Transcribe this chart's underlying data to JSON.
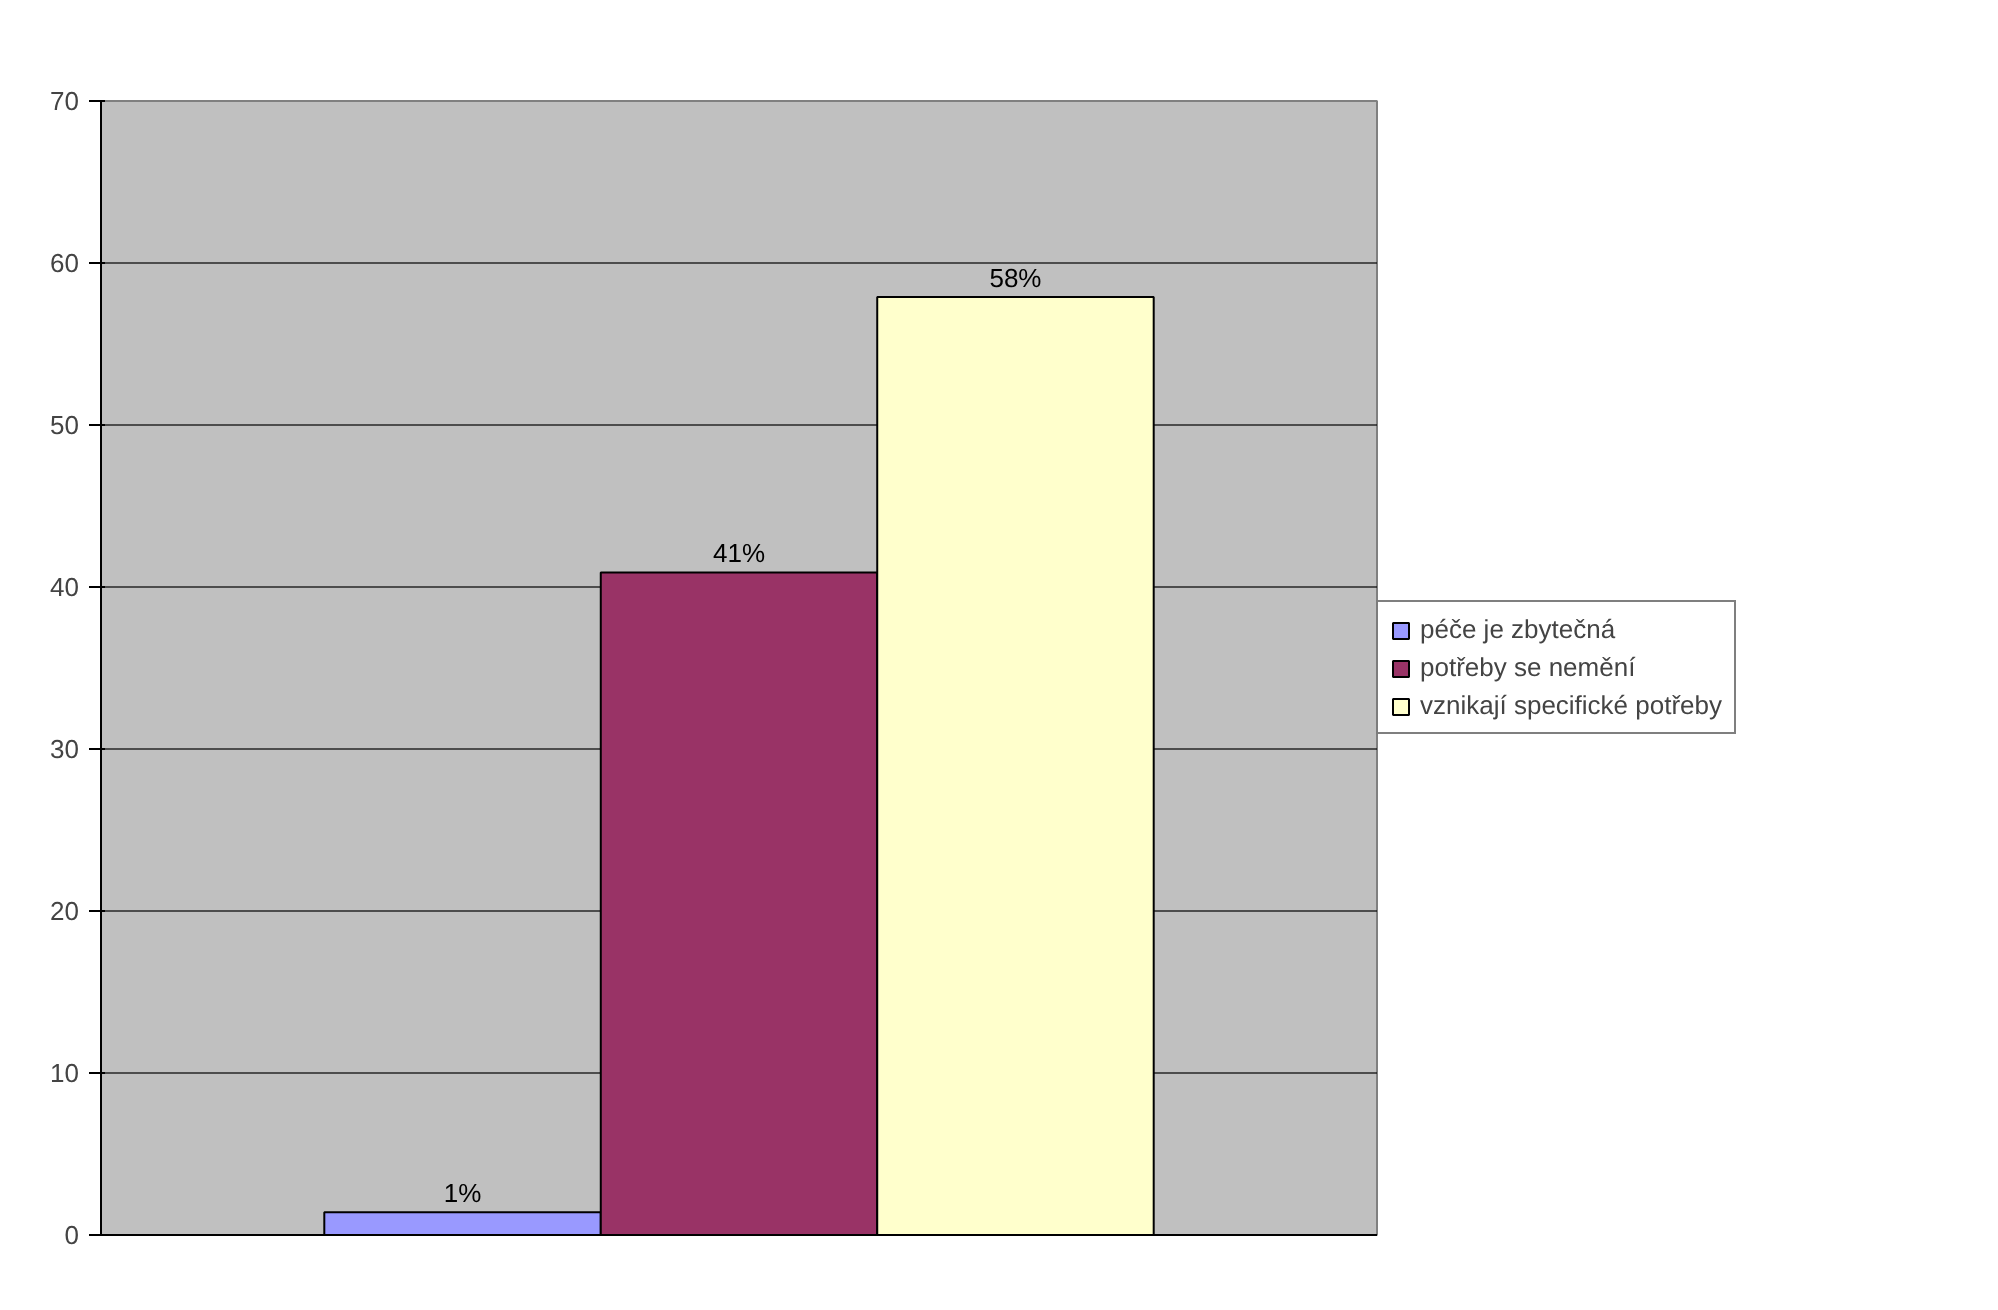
{
  "chart_data": {
    "type": "bar",
    "categories": [
      null
    ],
    "series": [
      {
        "name": "péče je zbytečná",
        "color": "#9999ff",
        "values": [
          1.4
        ],
        "value_labels": [
          "1%"
        ]
      },
      {
        "name": "potřeby se nemění",
        "color": "#993366",
        "values": [
          40.9
        ],
        "value_labels": [
          "41%"
        ]
      },
      {
        "name": "vznikají specifické potřeby",
        "color": "#ffffcc",
        "values": [
          57.9
        ],
        "value_labels": [
          "58%"
        ]
      }
    ],
    "ylim": [
      0,
      70
    ],
    "yticks": [
      0,
      10,
      20,
      30,
      40,
      50,
      60,
      70
    ],
    "grid": "y",
    "legend": "right"
  }
}
